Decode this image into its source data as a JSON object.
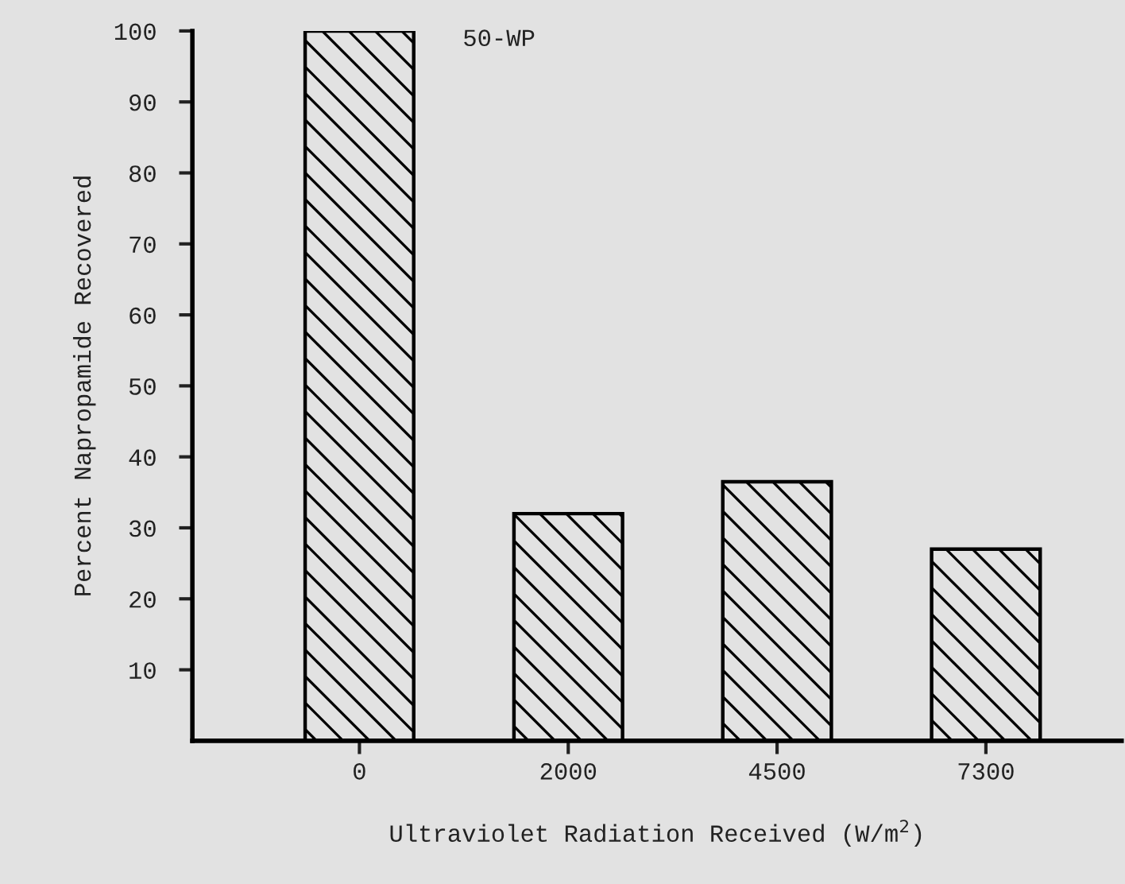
{
  "chart_data": {
    "type": "bar",
    "title": "50-WP",
    "xlabel": "Ultraviolet Radiation Received (W/m$^{2}$)",
    "ylabel": "Percent Napropamide Recovered",
    "categories": [
      "0",
      "2000",
      "4500",
      "7300"
    ],
    "values": [
      100,
      32,
      36.5,
      27
    ],
    "color": "#000000",
    "ylim": [
      0,
      100
    ],
    "yticks": [
      10,
      20,
      30,
      40,
      50,
      60,
      70,
      80,
      90,
      100
    ],
    "grid": false,
    "legend": false
  }
}
